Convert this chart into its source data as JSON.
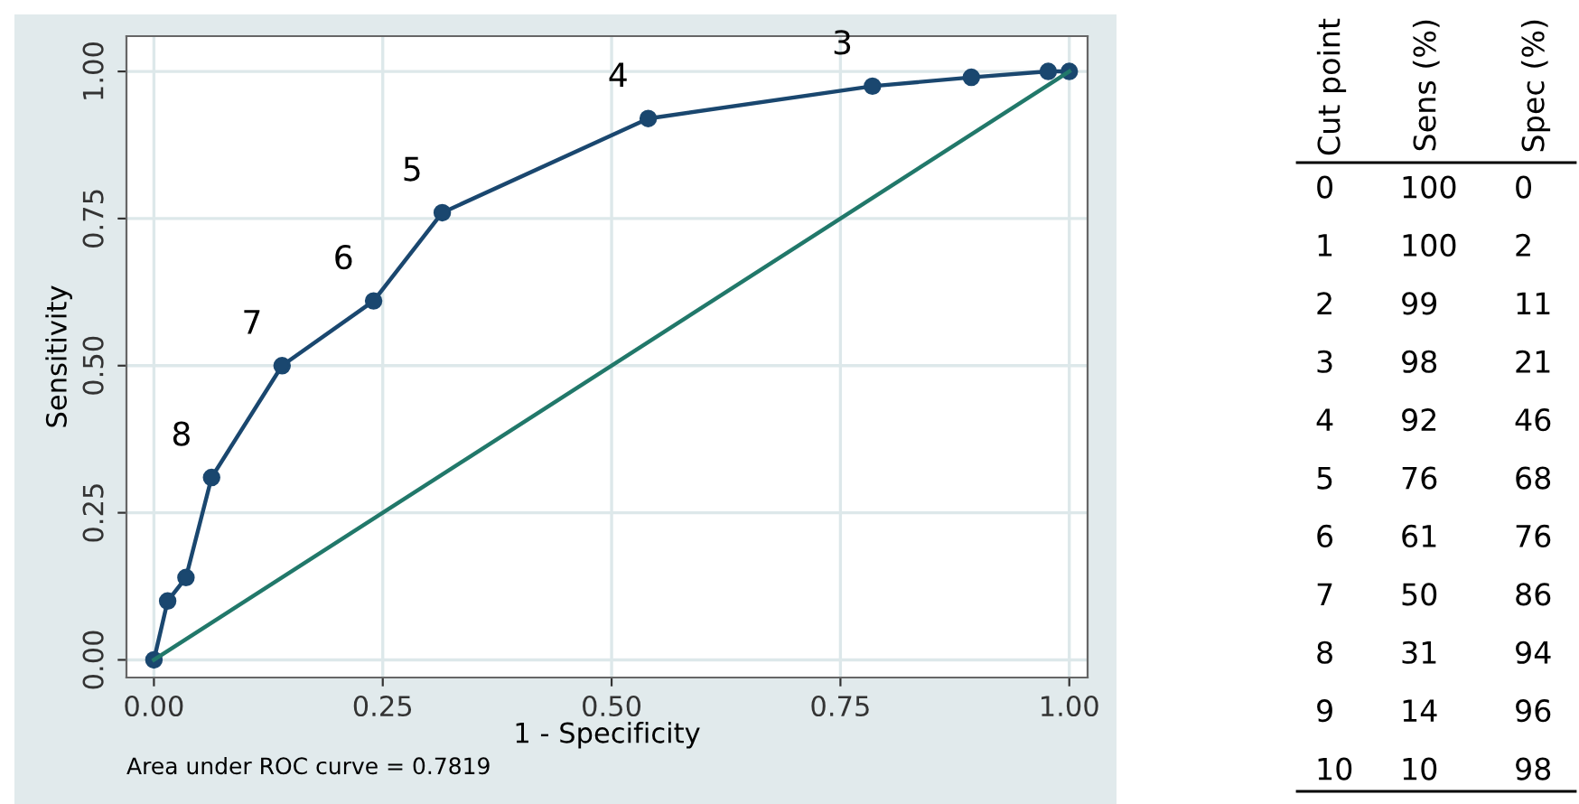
{
  "chart_data": {
    "type": "line",
    "xlabel": "1 - Specificity",
    "ylabel": "Sensitivity",
    "xlim": [
      -0.03,
      1.02
    ],
    "ylim": [
      -0.03,
      1.06
    ],
    "xticks": [
      {
        "value": 0,
        "label": "0.00"
      },
      {
        "value": 0.25,
        "label": "0.25"
      },
      {
        "value": 0.5,
        "label": "0.50"
      },
      {
        "value": 0.75,
        "label": "0.75"
      },
      {
        "value": 1,
        "label": "1.00"
      }
    ],
    "yticks": [
      {
        "value": 0,
        "label": "0.00"
      },
      {
        "value": 0.25,
        "label": "0.25"
      },
      {
        "value": 0.5,
        "label": "0.50"
      },
      {
        "value": 0.75,
        "label": "0.75"
      },
      {
        "value": 1,
        "label": "1.00"
      }
    ],
    "grid": true,
    "legend": false,
    "marker": "circle",
    "line_style": "solid",
    "series": [
      {
        "color": "#1a476f",
        "x": [
          0,
          0.015,
          0.035,
          0.063,
          0.14,
          0.24,
          0.315,
          0.54,
          0.785,
          0.893,
          0.977,
          1
        ],
        "values": [
          0,
          0.1,
          0.14,
          0.31,
          0.5,
          0.61,
          0.76,
          0.92,
          0.975,
          0.99,
          1.0,
          1
        ]
      },
      {
        "color": "#21786a",
        "marker": "none",
        "x": [
          0,
          1
        ],
        "values": [
          0,
          1
        ]
      }
    ],
    "annotations": [
      "Area under ROC curve = 0.7819",
      {
        "text": "3",
        "x": 0.785,
        "y": 0.975
      },
      {
        "text": "4",
        "x": 0.54,
        "y": 0.92
      },
      {
        "text": "5",
        "x": 0.315,
        "y": 0.76
      },
      {
        "text": "6",
        "x": 0.24,
        "y": 0.61
      },
      {
        "text": "7",
        "x": 0.14,
        "y": 0.5
      },
      {
        "text": "8",
        "x": 0.063,
        "y": 0.31
      },
      "Cut point",
      "Sens (%)",
      "Spec (%)",
      "0",
      "100",
      "0",
      "1",
      "100",
      "2",
      "2",
      "99",
      "11",
      "3",
      "98",
      "21",
      "4",
      "92",
      "46",
      "5",
      "76",
      "68",
      "6",
      "61",
      "76",
      "7",
      "50",
      "86",
      "8",
      "31",
      "94",
      "9",
      "14",
      "96",
      "10",
      "10",
      "98"
    ]
  }
}
